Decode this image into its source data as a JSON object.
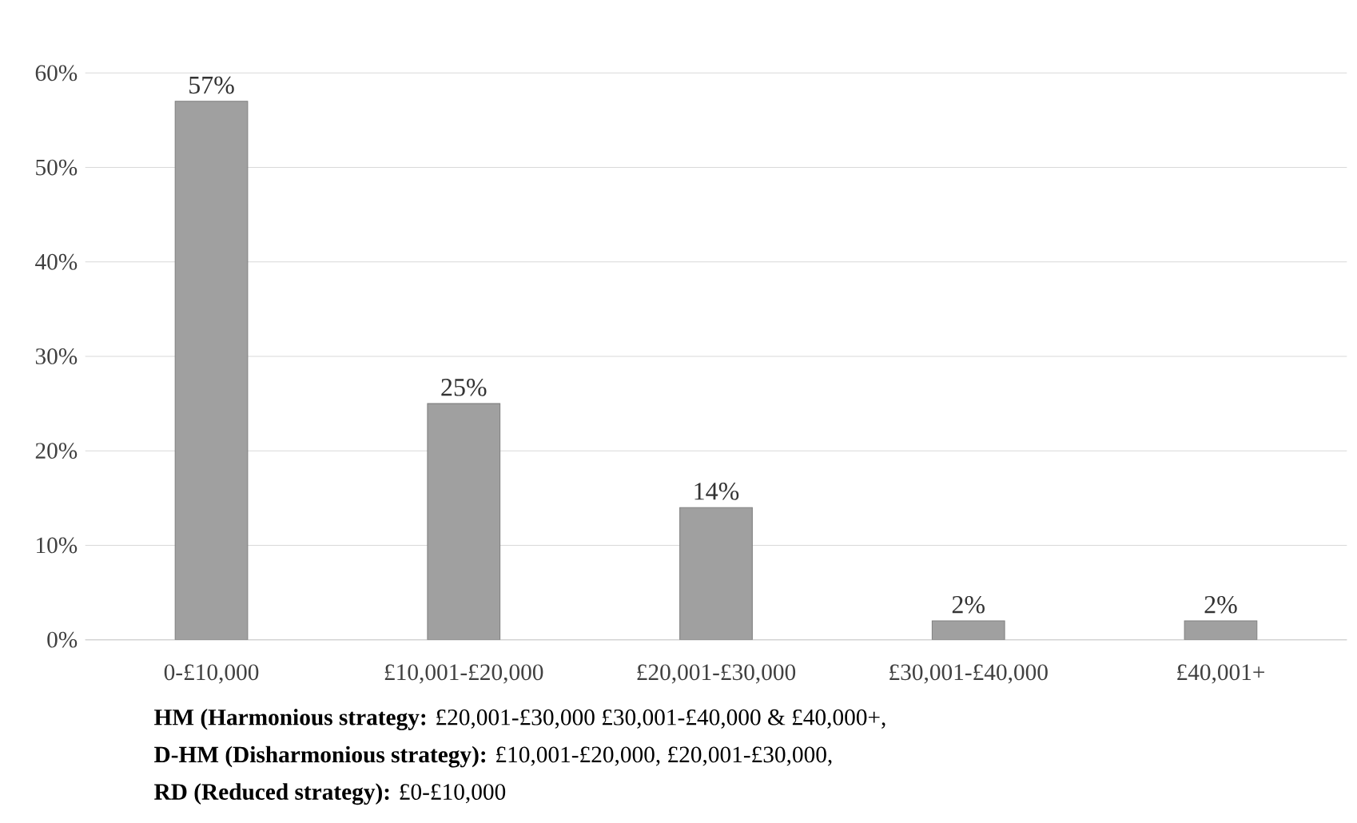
{
  "chart_data": {
    "type": "bar",
    "categories": [
      "0-£10,000",
      "£10,001-£20,000",
      "£20,001-£30,000",
      "£30,001-£40,000",
      "£40,001+"
    ],
    "values": [
      57,
      25,
      14,
      2,
      2
    ],
    "value_labels": [
      "57%",
      "25%",
      "14%",
      "2%",
      "2%"
    ],
    "color": "#a0a0a0",
    "ylim": [
      0,
      60
    ],
    "yticks": [
      {
        "value": 0,
        "label": "0%"
      },
      {
        "value": 10,
        "label": "10%"
      },
      {
        "value": 20,
        "label": "20%"
      },
      {
        "value": 30,
        "label": "30%"
      },
      {
        "value": 40,
        "label": "40%"
      },
      {
        "value": 50,
        "label": "50%"
      },
      {
        "value": 60,
        "label": "60%"
      }
    ],
    "grid": "y",
    "annotations": [
      "**HM (Harmonious strategy:** £20,001-£30,000 £30,001-£40,000 & £40,000+,",
      "**D-HM (Disharmonious strategy):** £10,001-£20,000, £20,001-£30,000,",
      "**RD (Reduced strategy):** £0-£10,000"
    ]
  }
}
